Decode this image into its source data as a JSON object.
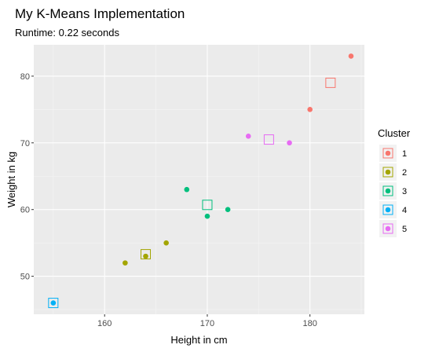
{
  "chart_data": {
    "type": "scatter",
    "title": "My K-Means Implementation",
    "subtitle": "Runtime: 0.22 seconds",
    "xlabel": "Height in cm",
    "ylabel": "Weight in kg",
    "xlim": [
      153.1,
      185.3
    ],
    "ylim": [
      44.3,
      84.7
    ],
    "x_ticks": [
      160,
      170,
      180
    ],
    "y_ticks": [
      50,
      60,
      70,
      80
    ],
    "x_minor": [
      155,
      165,
      175,
      185
    ],
    "y_minor": [
      45,
      55,
      65,
      75
    ],
    "grid": true,
    "legend": {
      "title": "Cluster",
      "position": "right",
      "entries": [
        "1",
        "2",
        "3",
        "4",
        "5"
      ]
    },
    "colors": {
      "1": "#F8766D",
      "2": "#A3A500",
      "3": "#00BF7D",
      "4": "#00B0F6",
      "5": "#E76BF3"
    },
    "panel_background": "#EBEBEB",
    "points": [
      {
        "x": 184,
        "y": 83,
        "cluster": "1"
      },
      {
        "x": 180,
        "y": 75,
        "cluster": "1"
      },
      {
        "x": 162,
        "y": 52,
        "cluster": "2"
      },
      {
        "x": 164,
        "y": 53,
        "cluster": "2"
      },
      {
        "x": 166,
        "y": 55,
        "cluster": "2"
      },
      {
        "x": 168,
        "y": 63,
        "cluster": "3"
      },
      {
        "x": 170,
        "y": 59,
        "cluster": "3"
      },
      {
        "x": 172,
        "y": 60,
        "cluster": "3"
      },
      {
        "x": 155,
        "y": 46,
        "cluster": "4"
      },
      {
        "x": 174,
        "y": 71,
        "cluster": "5"
      },
      {
        "x": 178,
        "y": 70,
        "cluster": "5"
      }
    ],
    "centroids": [
      {
        "x": 182,
        "y": 79,
        "cluster": "1"
      },
      {
        "x": 164,
        "y": 53.3,
        "cluster": "2"
      },
      {
        "x": 170,
        "y": 60.7,
        "cluster": "3"
      },
      {
        "x": 155,
        "y": 46,
        "cluster": "4"
      },
      {
        "x": 176,
        "y": 70.5,
        "cluster": "5"
      }
    ]
  }
}
